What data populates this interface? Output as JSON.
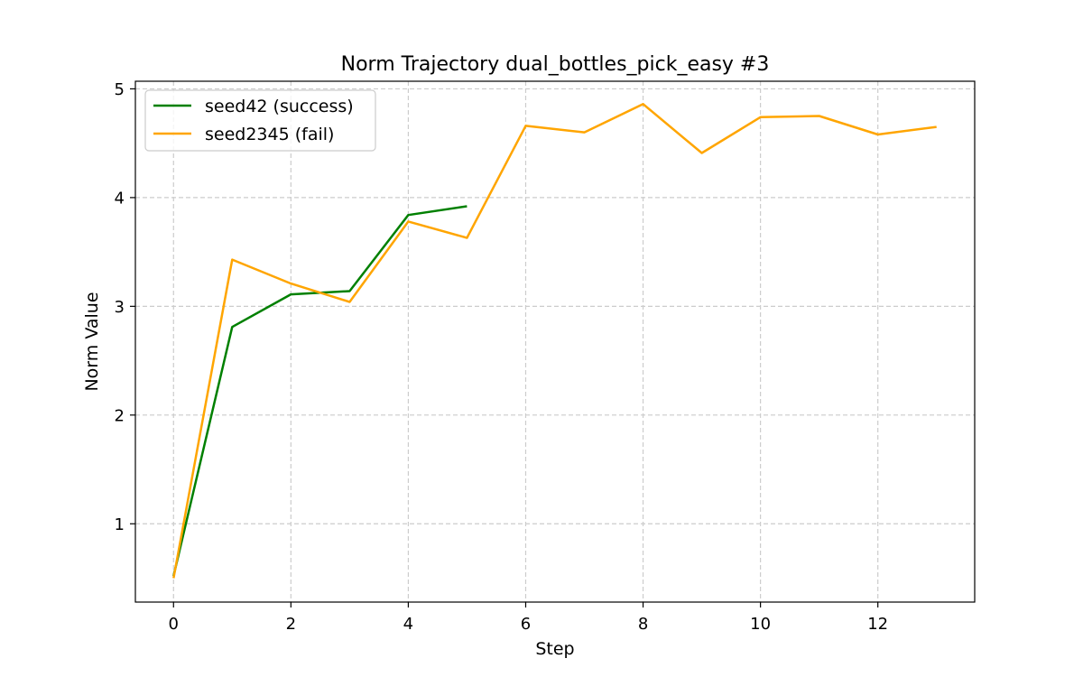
{
  "chart_data": {
    "type": "line",
    "title": "Norm Trajectory dual_bottles_pick_easy #3",
    "xlabel": "Step",
    "ylabel": "Norm Value",
    "xlim": [
      -0.65,
      13.65
    ],
    "ylim": [
      0.28,
      5.07
    ],
    "xticks": [
      0,
      2,
      4,
      6,
      8,
      10,
      12
    ],
    "yticks": [
      1,
      2,
      3,
      4,
      5
    ],
    "grid": true,
    "legend_position": "upper-left",
    "series": [
      {
        "name": "seed42 (success)",
        "color": "#008000",
        "x": [
          0,
          1,
          2,
          3,
          4,
          5
        ],
        "values": [
          0.52,
          2.81,
          3.11,
          3.14,
          3.84,
          3.92
        ]
      },
      {
        "name": "seed2345 (fail)",
        "color": "#FFA500",
        "x": [
          0,
          1,
          2,
          3,
          4,
          5,
          6,
          7,
          8,
          9,
          10,
          11,
          12,
          13
        ],
        "values": [
          0.5,
          3.43,
          3.21,
          3.04,
          3.78,
          3.63,
          4.66,
          4.6,
          4.86,
          4.41,
          4.74,
          4.75,
          4.58,
          4.65
        ]
      }
    ]
  }
}
